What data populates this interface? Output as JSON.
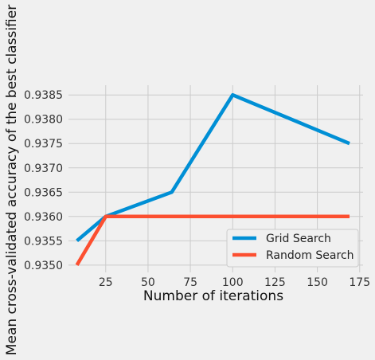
{
  "chart_data": {
    "type": "line",
    "title": "",
    "xlabel": "Number of iterations",
    "ylabel": "Mean cross-validated accuracy of the best classifier",
    "xlim": [
      3,
      177
    ],
    "ylim": [
      0.93485,
      0.9387
    ],
    "xticks": [
      25,
      50,
      75,
      100,
      125,
      150,
      175
    ],
    "xtick_labels": [
      "25",
      "50",
      "75",
      "100",
      "125",
      "150",
      "175"
    ],
    "yticks": [
      0.935,
      0.9355,
      0.936,
      0.9365,
      0.937,
      0.9375,
      0.938,
      0.9385
    ],
    "ytick_labels": [
      "0.9350",
      "0.9355",
      "0.9360",
      "0.9365",
      "0.9370",
      "0.9375",
      "0.9380",
      "0.9385"
    ],
    "grid": true,
    "legend_position": "lower-right",
    "series": [
      {
        "name": "Grid Search",
        "color": "#008fd5",
        "x": [
          8,
          25,
          64,
          100,
          169
        ],
        "y": [
          0.9355,
          0.936,
          0.9365,
          0.9385,
          0.9375
        ]
      },
      {
        "name": "Random Search",
        "color": "#fc4f30",
        "x": [
          8,
          25,
          100,
          169
        ],
        "y": [
          0.935,
          0.936,
          0.936,
          0.936
        ]
      }
    ]
  }
}
